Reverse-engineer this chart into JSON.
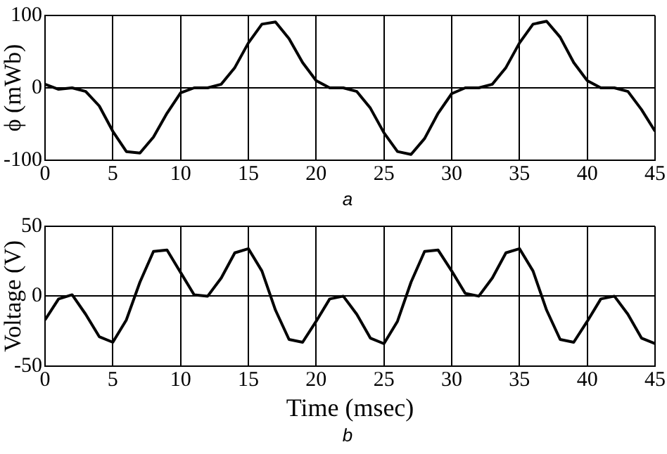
{
  "chart_data": [
    {
      "type": "line",
      "ylabel": "ϕ (mWb)",
      "annotations": [
        "a"
      ],
      "x": [
        0,
        1,
        2,
        3,
        4,
        5,
        6,
        7,
        8,
        9,
        10,
        11,
        12,
        13,
        14,
        15,
        16,
        17,
        18,
        19,
        20,
        21,
        22,
        23,
        24,
        25,
        26,
        27,
        28,
        29,
        30,
        31,
        32,
        33,
        34,
        35,
        36,
        37,
        38,
        39,
        40,
        41,
        42,
        43,
        44,
        45
      ],
      "series": [
        {
          "color": "#000000",
          "values": [
            5,
            -2,
            0,
            -5,
            -25,
            -60,
            -88,
            -90,
            -68,
            -35,
            -7,
            0,
            0,
            5,
            28,
            62,
            88,
            91,
            68,
            35,
            10,
            0,
            0,
            -5,
            -28,
            -62,
            -88,
            -92,
            -70,
            -35,
            -8,
            0,
            0,
            5,
            28,
            62,
            88,
            92,
            70,
            35,
            10,
            0,
            0,
            -5,
            -30,
            -60
          ]
        }
      ],
      "xlim": [
        0,
        45
      ],
      "xticks": [
        0,
        5,
        10,
        15,
        20,
        25,
        30,
        35,
        40,
        45
      ],
      "ylim": [
        -100,
        100
      ],
      "yticks": [
        -100,
        0,
        100
      ],
      "grid": true,
      "marker": "none",
      "line_style": "solid",
      "legend": false
    },
    {
      "type": "line",
      "xlabel": "Time (msec)",
      "ylabel": "Voltage (V)",
      "annotations": [
        "b"
      ],
      "x": [
        0,
        1,
        2,
        3,
        4,
        5,
        6,
        7,
        8,
        9,
        10,
        11,
        12,
        13,
        14,
        15,
        16,
        17,
        18,
        19,
        20,
        21,
        22,
        23,
        24,
        25,
        26,
        27,
        28,
        29,
        30,
        31,
        32,
        33,
        34,
        35,
        36,
        37,
        38,
        39,
        40,
        41,
        42,
        43,
        44,
        45
      ],
      "series": [
        {
          "color": "#000000",
          "values": [
            -17,
            -2,
            1,
            -13,
            -29,
            -33,
            -17,
            10,
            32,
            33,
            17,
            1,
            0,
            13,
            31,
            34,
            18,
            -10,
            -31,
            -33,
            -18,
            -2,
            0,
            -13,
            -30,
            -34,
            -18,
            10,
            32,
            33,
            18,
            2,
            0,
            13,
            31,
            34,
            18,
            -10,
            -31,
            -33,
            -18,
            -2,
            0,
            -13,
            -30,
            -34
          ]
        }
      ],
      "xlim": [
        0,
        45
      ],
      "xticks": [
        0,
        5,
        10,
        15,
        20,
        25,
        30,
        35,
        40,
        45
      ],
      "ylim": [
        -50,
        50
      ],
      "yticks": [
        -50,
        0,
        50
      ],
      "grid": true,
      "marker": "none",
      "line_style": "solid",
      "legend": false
    }
  ]
}
